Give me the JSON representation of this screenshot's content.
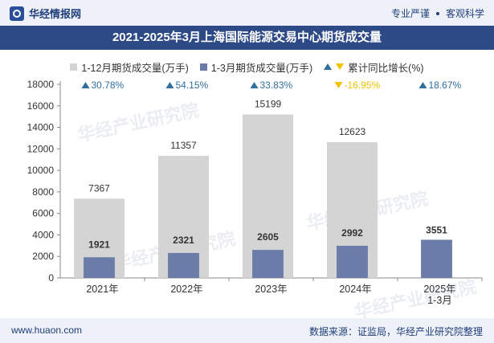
{
  "header": {
    "brand": "华经情报网",
    "tagline_left": "专业严谨",
    "tagline_right": "客观科学"
  },
  "chart_data": {
    "type": "bar",
    "title": "2021-2025年3月上海国际能源交易中心期货成交量",
    "categories": [
      "2021年",
      "2022年",
      "2023年",
      "2024年",
      "2025年 1-3月"
    ],
    "series": [
      {
        "name": "1-12月期货成交量(万手)",
        "values": [
          7367,
          11357,
          15199,
          12623,
          null
        ],
        "color": "#d4d4d4"
      },
      {
        "name": "1-3月期货成交量(万手)",
        "values": [
          1921,
          2321,
          2605,
          2992,
          3551
        ],
        "color": "#6b7ca8"
      },
      {
        "name": "累计同比增长(%)",
        "values": [
          "30.78%",
          "54.15%",
          "33.83%",
          "-16.95%",
          "18.67%"
        ],
        "colors": {
          "up": "#2e6f9e",
          "down": "#f2c100"
        }
      }
    ],
    "ylim": [
      0,
      18000
    ],
    "yticks": [
      "0",
      "2000",
      "4000",
      "6000",
      "8000",
      "10000",
      "12000",
      "14000",
      "16000",
      "18000"
    ],
    "grid": false,
    "legend": "top"
  },
  "watermark": "华经产业研究院",
  "footer": {
    "url": "www.huaon.com",
    "source": "数据来源：证监局，华经产业研究院整理"
  }
}
